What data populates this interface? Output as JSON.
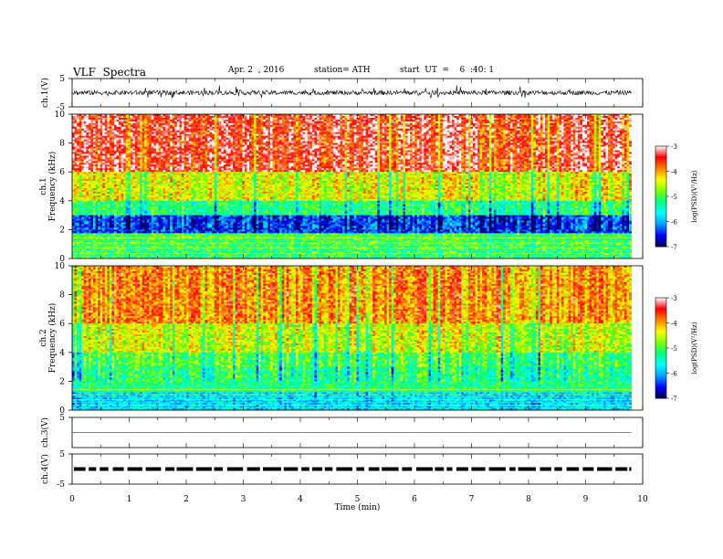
{
  "header": {
    "title": "VLF  Spectra",
    "date": "Apr. 2  , 2016",
    "station": "station= ATH",
    "start": "start  UT  =    6  :40: 1"
  },
  "chart_data": {
    "type": "heatmap",
    "xlabel": "Time  (min)",
    "xlim": [
      0,
      10
    ],
    "x_ticks": [
      "0",
      "1",
      "2",
      "3",
      "4",
      "5",
      "6",
      "7",
      "8",
      "9",
      "10"
    ],
    "data_end_min": 9.8,
    "panels": [
      {
        "type": "line",
        "ylabel": "ch.1(V)",
        "ylim": [
          -5,
          5
        ],
        "y_ticks": [
          "5",
          "-5"
        ],
        "amplitude_note": "noise about 0 V, ~±1 V"
      },
      {
        "type": "heatmap",
        "channel": "ch.1",
        "ylabel": "Frequency  (kHz)",
        "ylim": [
          0,
          10
        ],
        "y_ticks": [
          "0",
          "2",
          "4",
          "6",
          "8",
          "10"
        ],
        "colorbar": {
          "label": "log(PSD)(V²/Hz)",
          "range": [
            -7,
            -3
          ],
          "ticks": [
            "-3",
            "-4",
            "-5",
            "-6",
            "-7"
          ]
        }
      },
      {
        "type": "heatmap",
        "channel": "ch.2",
        "ylabel": "Frequency  (kHz)",
        "ylim": [
          0,
          10
        ],
        "y_ticks": [
          "0",
          "2",
          "4",
          "6",
          "8",
          "10"
        ],
        "colorbar": {
          "label": "log(PSD)(V²/Hz)",
          "range": [
            -7,
            -3
          ],
          "ticks": [
            "-3",
            "-4",
            "-5",
            "-6",
            "-7"
          ]
        }
      },
      {
        "type": "line",
        "ylabel": "ch.3(V)",
        "ylim": [
          -5,
          5
        ],
        "y_ticks": [
          "5"
        ],
        "amplitude_note": "flat 0 V"
      },
      {
        "type": "line",
        "ylabel": "ch.4(V)",
        "ylim": [
          -5,
          5
        ],
        "y_ticks": [
          "5",
          "-5"
        ],
        "amplitude_note": "dashed trace near 0 V"
      }
    ]
  },
  "colors": {
    "scale": [
      "#000050",
      "#0000ff",
      "#00a0ff",
      "#00ffff",
      "#00ff80",
      "#80ff00",
      "#ffff00",
      "#ff8000",
      "#ff0000",
      "#ffffff"
    ]
  }
}
